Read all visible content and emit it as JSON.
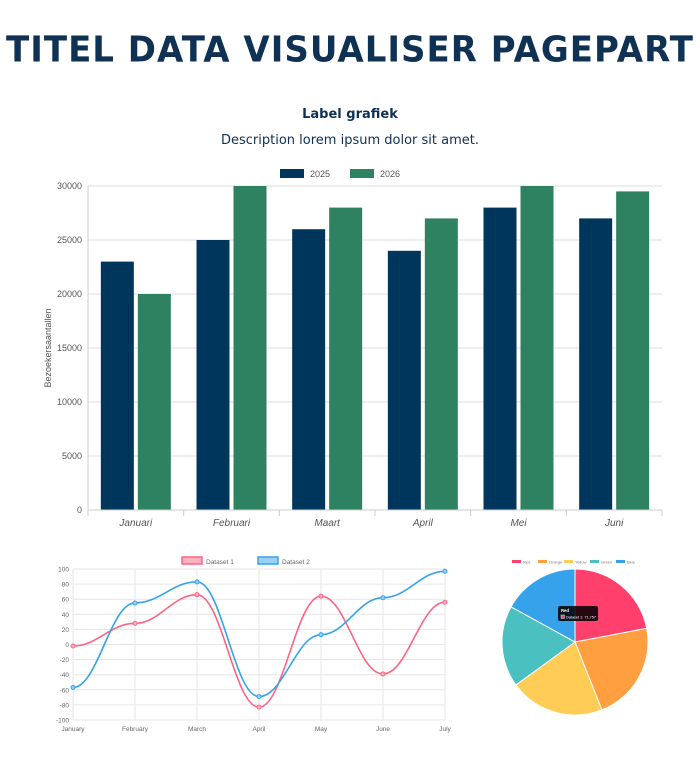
{
  "page": {
    "title": "TITEL DATA VISUALISER PAGEPART",
    "chart_label": "Label grafiek",
    "chart_description": "Description lorem ipsum dolor sit amet."
  },
  "chart_data": [
    {
      "type": "bar",
      "title": "",
      "ylabel": "Bezoekersaantallen",
      "xlabel": "",
      "categories": [
        "Januari",
        "Februari",
        "Maart",
        "April",
        "Mei",
        "Juni"
      ],
      "series": [
        {
          "name": "2025",
          "color": "#00365c",
          "values": [
            23000,
            25000,
            26000,
            24000,
            28000,
            27000
          ]
        },
        {
          "name": "2026",
          "color": "#2e8262",
          "values": [
            20000,
            30000,
            28000,
            27000,
            30000,
            29500
          ]
        }
      ],
      "ylim": [
        0,
        30000
      ],
      "yticks": [
        "0",
        "5000",
        "10000",
        "15000",
        "20000",
        "25000",
        "30000"
      ],
      "grid": true,
      "legend": "top"
    },
    {
      "type": "line",
      "categories": [
        "January",
        "February",
        "March",
        "April",
        "May",
        "June",
        "July"
      ],
      "series": [
        {
          "name": "Dataset 1",
          "color": "#ff6384",
          "fill": "#ffb1c1",
          "values": [
            -2,
            28,
            66,
            -83,
            64,
            -39,
            56
          ]
        },
        {
          "name": "Dataset 2",
          "color": "#36a2eb",
          "fill": "#9ad0f5",
          "values": [
            -57,
            55,
            83,
            -69,
            13,
            62,
            97
          ]
        }
      ],
      "ylim": [
        -100,
        100
      ],
      "yticks": [
        "-100",
        "-80",
        "-60",
        "-40",
        "-20",
        "0",
        "20",
        "40",
        "60",
        "80",
        "100"
      ],
      "grid": true,
      "legend": "top"
    },
    {
      "type": "pie",
      "categories": [
        "Red",
        "Orange",
        "Yellow",
        "Green",
        "Blue"
      ],
      "values": [
        22,
        22,
        21,
        18,
        17
      ],
      "colors": [
        "#ff3f6c",
        "#ff9f40",
        "#ffcd56",
        "#4bc0c0",
        "#36a2eb"
      ],
      "tooltip": {
        "title": "Red",
        "text": "Dataset 1: 71,757"
      },
      "legend": "top"
    }
  ]
}
